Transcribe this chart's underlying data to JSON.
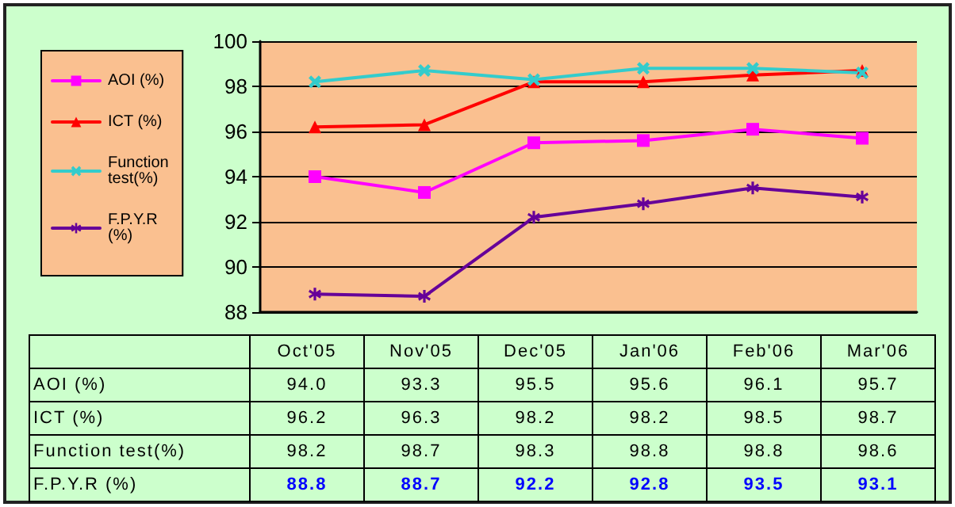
{
  "chart_data": {
    "type": "line",
    "categories": [
      "Oct'05",
      "Nov'05",
      "Dec'05",
      "Jan'06",
      "Feb'06",
      "Mar'06"
    ],
    "series": [
      {
        "name": "AOI (%)",
        "color": "#ff00ff",
        "marker": "square",
        "values": [
          94.0,
          93.3,
          95.5,
          95.6,
          96.1,
          95.7
        ],
        "value_labels": [
          "94.0",
          "93.3",
          "95.5",
          "95.6",
          "96.1",
          "95.7"
        ]
      },
      {
        "name": "ICT (%)",
        "color": "#ff0000",
        "marker": "triangle",
        "values": [
          96.2,
          96.3,
          98.2,
          98.2,
          98.5,
          98.7
        ],
        "value_labels": [
          "96.2",
          "96.3",
          "98.2",
          "98.2",
          "98.5",
          "98.7"
        ]
      },
      {
        "name": "Function test(%)",
        "color": "#33cccc",
        "marker": "cross",
        "values": [
          98.2,
          98.7,
          98.3,
          98.8,
          98.8,
          98.6
        ],
        "value_labels": [
          "98.2",
          "98.7",
          "98.3",
          "98.8",
          "98.8",
          "98.6"
        ]
      },
      {
        "name": "F.P.Y.R (%)",
        "color": "#660099",
        "marker": "star",
        "values": [
          88.8,
          88.7,
          92.2,
          92.8,
          93.5,
          93.1
        ],
        "value_labels": [
          "88.8",
          "88.7",
          "92.2",
          "92.8",
          "93.5",
          "93.1"
        ]
      }
    ],
    "ylim": [
      88,
      100
    ],
    "yticks": [
      88,
      90,
      92,
      94,
      96,
      98,
      100
    ],
    "grid": "y",
    "legend": "left",
    "tick_labels": "y"
  }
}
